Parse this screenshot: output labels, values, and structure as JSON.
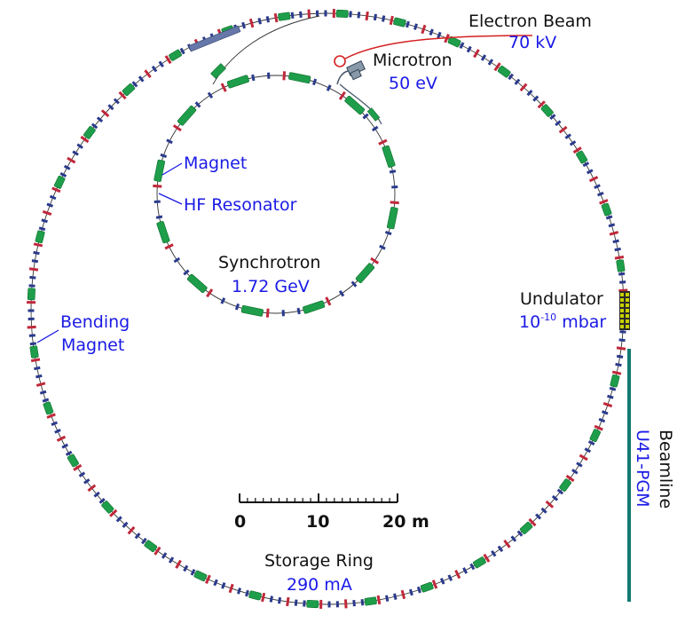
{
  "colors": {
    "magnet": "#1e9e4a",
    "magnet_stroke": "#0d6b2c",
    "quad": "#2a3a8c",
    "corrector": "#c0283a",
    "orbit": "#333333",
    "highlight_text": "#1a1ae6",
    "electron_beam": "#d42020",
    "beamline": "#137a70",
    "undulator": "#c8d000"
  },
  "labels": {
    "electron_beam_title": "Electron Beam",
    "electron_beam_value": "70 kV",
    "microtron_title": "Microtron",
    "microtron_value": "50 eV",
    "magnet": "Magnet",
    "hf_resonator": "HF Resonator",
    "synchrotron_title": "Synchrotron",
    "synchrotron_value": "1.72 GeV",
    "bending_magnet_line1": "Bending",
    "bending_magnet_line2": "Magnet",
    "undulator_title": "Undulator",
    "undulator_value_base": "10",
    "undulator_value_exp": "-10",
    "undulator_value_unit": " mbar",
    "beamline_title": "Beamline",
    "beamline_value": "U41-PGM",
    "storage_ring_title": "Storage Ring",
    "storage_ring_value": "290 mA"
  },
  "scale_bar": {
    "ticks": [
      "0",
      "10",
      "20 m"
    ]
  }
}
